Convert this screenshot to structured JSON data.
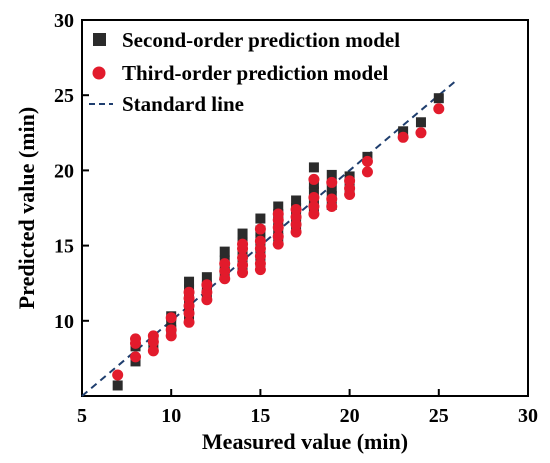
{
  "chart_data": {
    "type": "scatter",
    "xlabel": "Measured value (min)",
    "ylabel": "Predicted value (min)",
    "xlim": [
      5,
      30
    ],
    "ylim": [
      5,
      30
    ],
    "x_ticks": [
      "5",
      "10",
      "15",
      "20",
      "25",
      "30"
    ],
    "y_ticks": [
      "10",
      "15",
      "20",
      "25",
      "30"
    ],
    "grid": false,
    "legend_position": "top-left",
    "colors": {
      "second_order": "#2b2b2b",
      "third_order": "#e21b2c",
      "standard_line": "#1f3e6e"
    },
    "series": [
      {
        "name": "Second-order prediction model",
        "marker": "square",
        "points": [
          [
            7,
            5.7
          ],
          [
            8,
            7.3
          ],
          [
            8,
            8.3
          ],
          [
            8,
            8.6
          ],
          [
            9,
            8.3
          ],
          [
            9,
            8.8
          ],
          [
            10,
            9.4
          ],
          [
            10,
            9.9
          ],
          [
            10,
            10.3
          ],
          [
            11,
            10.4
          ],
          [
            11,
            10.8
          ],
          [
            11,
            11.3
          ],
          [
            11,
            11.7
          ],
          [
            11,
            12.1
          ],
          [
            11,
            12.6
          ],
          [
            12,
            11.8
          ],
          [
            12,
            12.3
          ],
          [
            12,
            12.9
          ],
          [
            13,
            13.2
          ],
          [
            13,
            13.6
          ],
          [
            13,
            14.0
          ],
          [
            13,
            14.6
          ],
          [
            14,
            13.5
          ],
          [
            14,
            14.0
          ],
          [
            14,
            14.5
          ],
          [
            14,
            15.2
          ],
          [
            14,
            15.8
          ],
          [
            15,
            13.9
          ],
          [
            15,
            14.4
          ],
          [
            15,
            14.9
          ],
          [
            15,
            15.4
          ],
          [
            15,
            16.0
          ],
          [
            15,
            16.8
          ],
          [
            16,
            15.5
          ],
          [
            16,
            16.1
          ],
          [
            16,
            16.6
          ],
          [
            16,
            17.1
          ],
          [
            16,
            17.6
          ],
          [
            17,
            16.2
          ],
          [
            17,
            16.6
          ],
          [
            17,
            17.0
          ],
          [
            17,
            17.5
          ],
          [
            17,
            18.0
          ],
          [
            18,
            17.5
          ],
          [
            18,
            18.0
          ],
          [
            18,
            18.6
          ],
          [
            18,
            19.1
          ],
          [
            18,
            20.2
          ],
          [
            19,
            17.7
          ],
          [
            19,
            18.3
          ],
          [
            19,
            18.8
          ],
          [
            19,
            19.7
          ],
          [
            20,
            18.6
          ],
          [
            20,
            19.1
          ],
          [
            20,
            19.6
          ],
          [
            21,
            20.9
          ],
          [
            23,
            22.6
          ],
          [
            24,
            23.2
          ],
          [
            25,
            24.8
          ]
        ]
      },
      {
        "name": "Third-order prediction model",
        "marker": "circle",
        "points": [
          [
            7,
            6.4
          ],
          [
            8,
            7.6
          ],
          [
            8,
            8.5
          ],
          [
            8,
            8.8
          ],
          [
            9,
            8.0
          ],
          [
            9,
            8.6
          ],
          [
            9,
            9.0
          ],
          [
            10,
            9.0
          ],
          [
            10,
            9.4
          ],
          [
            10,
            10.2
          ],
          [
            11,
            9.9
          ],
          [
            11,
            10.5
          ],
          [
            11,
            11.0
          ],
          [
            11,
            11.5
          ],
          [
            11,
            11.9
          ],
          [
            12,
            11.4
          ],
          [
            12,
            11.9
          ],
          [
            12,
            12.4
          ],
          [
            13,
            12.8
          ],
          [
            13,
            13.3
          ],
          [
            13,
            13.8
          ],
          [
            14,
            13.2
          ],
          [
            14,
            13.7
          ],
          [
            14,
            14.2
          ],
          [
            14,
            14.8
          ],
          [
            14,
            15.1
          ],
          [
            15,
            13.4
          ],
          [
            15,
            13.8
          ],
          [
            15,
            14.3
          ],
          [
            15,
            14.8
          ],
          [
            15,
            15.3
          ],
          [
            15,
            16.1
          ],
          [
            16,
            15.1
          ],
          [
            16,
            15.6
          ],
          [
            16,
            16.2
          ],
          [
            16,
            16.7
          ],
          [
            16,
            17.1
          ],
          [
            17,
            15.9
          ],
          [
            17,
            16.4
          ],
          [
            17,
            16.9
          ],
          [
            17,
            17.4
          ],
          [
            18,
            17.1
          ],
          [
            18,
            17.6
          ],
          [
            18,
            18.2
          ],
          [
            18,
            19.4
          ],
          [
            19,
            17.6
          ],
          [
            19,
            18.1
          ],
          [
            19,
            19.2
          ],
          [
            20,
            18.4
          ],
          [
            20,
            18.8
          ],
          [
            20,
            19.3
          ],
          [
            21,
            19.9
          ],
          [
            21,
            20.6
          ],
          [
            23,
            22.2
          ],
          [
            24,
            22.5
          ],
          [
            25,
            24.1
          ]
        ]
      },
      {
        "name": "Standard line",
        "marker": "dashed-line",
        "points": [
          [
            5,
            5
          ],
          [
            25.9,
            25.9
          ]
        ]
      }
    ]
  }
}
